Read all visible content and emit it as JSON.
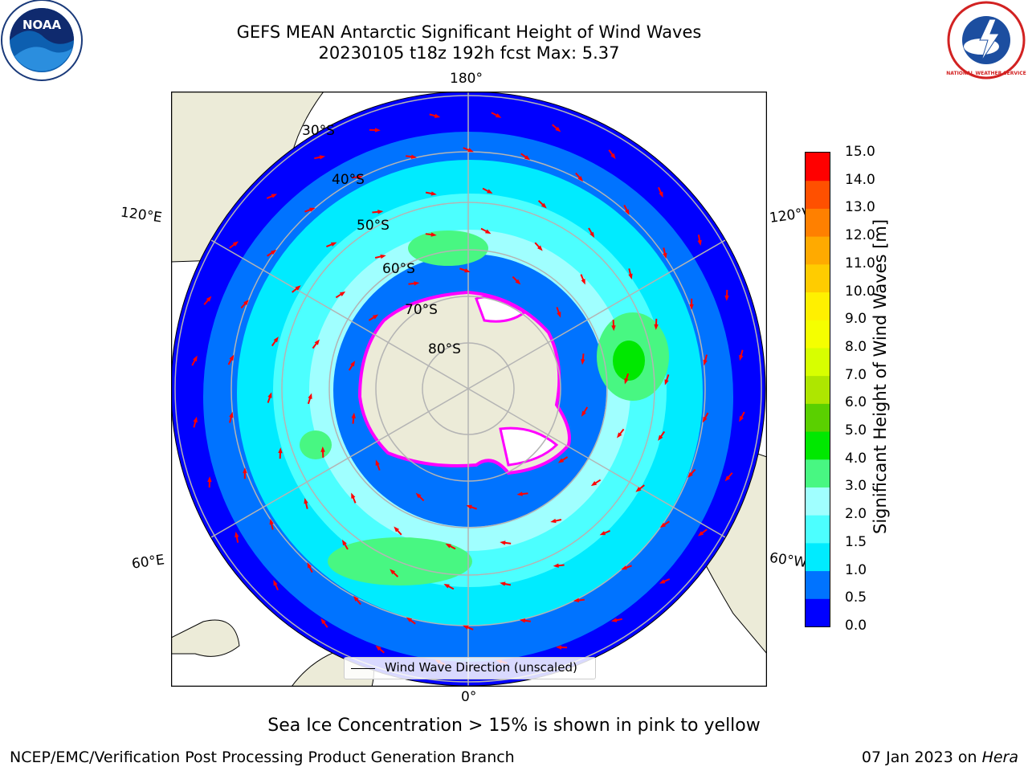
{
  "header": {
    "title_line1": "GEFS MEAN Antarctic Significant Height of Wind Waves",
    "title_line2": "20230105 t18z 192h fcst   Max: 5.37"
  },
  "logos": {
    "noaa_text": "NOAA",
    "nws_text": "NATIONAL WEATHER SERVICE"
  },
  "map": {
    "projection": "south-polar-stereographic",
    "longitude_labels": [
      "180°",
      "120°E",
      "120°W",
      "60°E",
      "60°W",
      "0°"
    ],
    "latitude_labels": [
      "30°S",
      "40°S",
      "50°S",
      "60°S",
      "70°S",
      "80°S"
    ],
    "legend_label": "Wind Wave Direction (unscaled)",
    "colors": {
      "land": "#ecebd8",
      "ice_edge": "#ff00ff",
      "arrows": "#ff0000",
      "grid": "#b4b4b4"
    }
  },
  "colorbar": {
    "label": "Significant Height of Wind Waves [m]",
    "ticks": [
      "0.0",
      "0.5",
      "1.0",
      "1.5",
      "2.0",
      "3.0",
      "4.0",
      "5.0",
      "6.0",
      "7.0",
      "8.0",
      "9.0",
      "10.0",
      "11.0",
      "12.0",
      "13.0",
      "14.0",
      "15.0"
    ],
    "colors": [
      "#0000ff",
      "#0073ff",
      "#00ebff",
      "#4cffff",
      "#a0ffff",
      "#48f782",
      "#00e800",
      "#5ad000",
      "#aee600",
      "#d7ff00",
      "#f5ff00",
      "#fff000",
      "#ffcc00",
      "#ffaa00",
      "#ff8000",
      "#ff5000",
      "#ff0000"
    ]
  },
  "footer": {
    "note": "Sea Ice Concentration > 15% is shown in pink to yellow",
    "credit": "NCEP/EMC/Verification Post Processing Product Generation Branch",
    "date": "07 Jan 2023 on",
    "host": "Hera"
  }
}
